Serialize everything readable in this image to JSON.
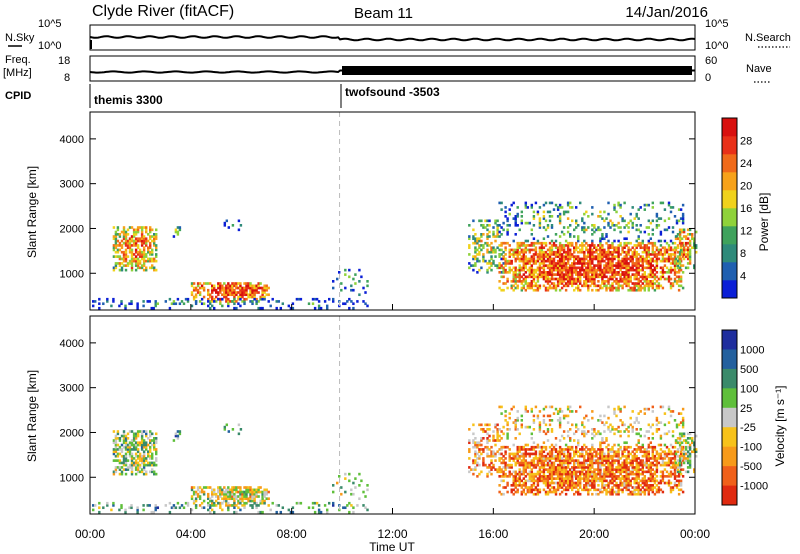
{
  "header": {
    "title": "Clyde River (fitACF)",
    "beam": "Beam 11",
    "date": "14/Jan/2016"
  },
  "noise_panel": {
    "left_label": "N.Sky",
    "left_ticks": [
      "10^5",
      "10^0"
    ],
    "right_label": "N.Search",
    "right_ticks": [
      "10^5",
      "10^0"
    ]
  },
  "freq_panel": {
    "left_label_1": "Freq.",
    "left_label_2": "[MHz]",
    "left_ticks": [
      "18",
      "8"
    ],
    "right_label": "Nave",
    "right_ticks": [
      "60",
      "0"
    ]
  },
  "cpid": {
    "label": "CPID",
    "modes": [
      "themis 3300",
      "twofsound -3503"
    ]
  },
  "colors": {
    "power_scale": [
      "#0b1fd6",
      "#1f5fb0",
      "#2e8a7a",
      "#3fa25c",
      "#8fd23a",
      "#f0d21c",
      "#f7a21a",
      "#f06a1a",
      "#e83018",
      "#d8100e"
    ],
    "velocity_scale": [
      "#1f2e9e",
      "#23609e",
      "#3a8a6a",
      "#5fbf3a",
      "#c8c8c8",
      "#f7c21a",
      "#f79a1a",
      "#f0601a",
      "#e02a10"
    ]
  },
  "chart_data": [
    {
      "type": "heatmap",
      "name": "power",
      "ylabel": "Slant Range [km]",
      "ylim": [
        180,
        4600
      ],
      "yticks": [
        1000,
        2000,
        3000,
        4000
      ],
      "xlim": [
        0,
        24
      ],
      "colorbar_label": "Power [dB]",
      "colorbar_ticks": [
        4,
        8,
        12,
        16,
        20,
        24,
        28
      ],
      "colorbar_range": [
        0,
        32
      ],
      "marker_time": 9.9
    },
    {
      "type": "heatmap",
      "name": "velocity",
      "ylabel": "Slant Range [km]",
      "xlabel": "Time UT",
      "ylim": [
        180,
        4600
      ],
      "yticks": [
        1000,
        2000,
        3000,
        4000
      ],
      "xlim": [
        0,
        24
      ],
      "xticks": [
        "00:00",
        "04:00",
        "08:00",
        "12:00",
        "16:00",
        "20:00",
        "00:00"
      ],
      "colorbar_label": "Velocity [m s⁻¹]",
      "colorbar_ticks": [
        "1000",
        "500",
        "100",
        "25",
        "-25",
        "-100",
        "-500",
        "-1000"
      ],
      "marker_time": 9.9
    }
  ]
}
